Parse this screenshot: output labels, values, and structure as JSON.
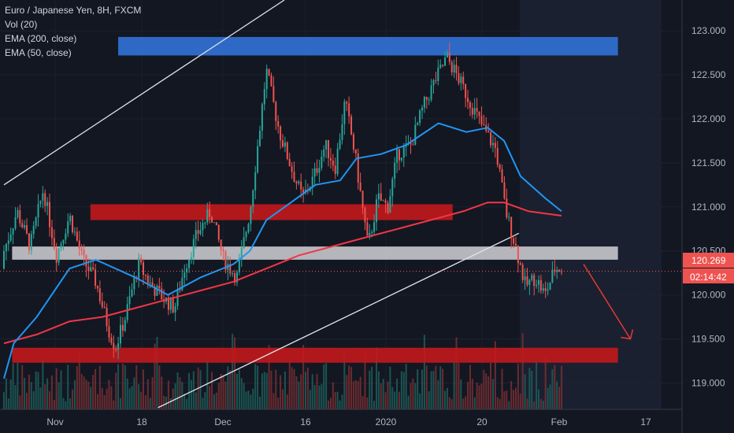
{
  "legend": {
    "symbol": "Euro / Japanese Yen, 8H, FXCM",
    "vol": "Vol (20)",
    "ema200": "EMA (200, close)",
    "ema50": "EMA (50, close)"
  },
  "price_axis": {
    "current_price": "120.269",
    "countdown": "02:14:42"
  },
  "colors": {
    "background": "#131722",
    "up_candle": "#26a69a",
    "down_candle": "#ef5350",
    "ema200": "#f23645",
    "ema50": "#2196f3",
    "zone_red": "#c2181c",
    "zone_gray": "#c8c8cc",
    "zone_blue": "#2f6ecf",
    "price_line": "#ef5350"
  },
  "chart_data": {
    "type": "candlestick",
    "y_range": [
      118.7,
      123.35
    ],
    "y_ticks": [
      119.0,
      119.5,
      120.0,
      120.5,
      121.0,
      121.5,
      122.0,
      122.5,
      123.0
    ],
    "y_tick_labels": [
      "119.000",
      "119.500",
      "120.000",
      "120.500",
      "121.000",
      "121.500",
      "122.000",
      "122.500",
      "123.000"
    ],
    "x_ticks": [
      "Nov",
      "18",
      "Dec",
      "16",
      "2020",
      "20",
      "Feb",
      "17"
    ],
    "candle_count": 245,
    "path": [
      [
        0,
        120.5
      ],
      [
        8,
        120.95
      ],
      [
        16,
        120.55
      ],
      [
        24,
        121.2
      ],
      [
        32,
        120.45
      ],
      [
        40,
        120.9
      ],
      [
        48,
        120.4
      ],
      [
        56,
        120.15
      ],
      [
        64,
        119.6
      ],
      [
        68,
        119.4
      ],
      [
        74,
        119.75
      ],
      [
        82,
        120.35
      ],
      [
        90,
        120.1
      ],
      [
        98,
        119.95
      ],
      [
        104,
        119.85
      ],
      [
        110,
        120.3
      ],
      [
        118,
        120.7
      ],
      [
        126,
        120.95
      ],
      [
        134,
        120.4
      ],
      [
        142,
        120.2
      ],
      [
        150,
        120.95
      ],
      [
        156,
        121.9
      ],
      [
        160,
        122.55
      ],
      [
        168,
        121.85
      ],
      [
        176,
        121.4
      ],
      [
        182,
        121.1
      ],
      [
        188,
        121.3
      ],
      [
        196,
        121.7
      ],
      [
        202,
        121.45
      ],
      [
        208,
        122.2
      ],
      [
        214,
        121.6
      ],
      [
        222,
        120.55
      ],
      [
        228,
        121.1
      ],
      [
        234,
        121.0
      ],
      [
        240,
        121.6
      ],
      [
        248,
        121.7
      ],
      [
        256,
        122.15
      ],
      [
        262,
        122.4
      ],
      [
        270,
        122.7
      ],
      [
        276,
        122.5
      ],
      [
        284,
        122.2
      ],
      [
        292,
        121.9
      ],
      [
        300,
        121.65
      ],
      [
        306,
        120.95
      ],
      [
        312,
        120.55
      ],
      [
        318,
        120.1
      ],
      [
        324,
        120.2
      ],
      [
        330,
        120.0
      ],
      [
        336,
        120.3
      ],
      [
        340,
        120.3
      ]
    ],
    "ema50": [
      [
        0,
        119.05
      ],
      [
        6,
        119.45
      ],
      [
        20,
        119.75
      ],
      [
        40,
        120.3
      ],
      [
        56,
        120.4
      ],
      [
        80,
        120.2
      ],
      [
        100,
        120.0
      ],
      [
        120,
        120.2
      ],
      [
        140,
        120.35
      ],
      [
        150,
        120.5
      ],
      [
        160,
        120.85
      ],
      [
        175,
        121.05
      ],
      [
        190,
        121.25
      ],
      [
        205,
        121.3
      ],
      [
        215,
        121.55
      ],
      [
        230,
        121.6
      ],
      [
        245,
        121.7
      ],
      [
        265,
        121.95
      ],
      [
        282,
        121.85
      ],
      [
        295,
        121.9
      ],
      [
        305,
        121.75
      ],
      [
        315,
        121.35
      ],
      [
        330,
        121.1
      ],
      [
        340,
        120.95
      ]
    ],
    "ema200": [
      [
        0,
        119.45
      ],
      [
        20,
        119.55
      ],
      [
        40,
        119.7
      ],
      [
        60,
        119.75
      ],
      [
        80,
        119.85
      ],
      [
        100,
        119.95
      ],
      [
        120,
        120.05
      ],
      [
        140,
        120.15
      ],
      [
        160,
        120.3
      ],
      [
        180,
        120.45
      ],
      [
        200,
        120.55
      ],
      [
        220,
        120.65
      ],
      [
        240,
        120.75
      ],
      [
        260,
        120.85
      ],
      [
        280,
        120.95
      ],
      [
        295,
        121.05
      ],
      [
        305,
        121.05
      ],
      [
        320,
        120.95
      ],
      [
        340,
        120.9
      ]
    ],
    "zones": [
      {
        "kind": "resistance",
        "color": "blue",
        "x": [
          70,
          390
        ],
        "y": [
          122.72,
          122.93
        ]
      },
      {
        "kind": "resistance",
        "color": "red",
        "x": [
          53,
          285
        ],
        "y": [
          120.85,
          121.03
        ]
      },
      {
        "kind": "pivot",
        "color": "gray",
        "x": [
          5,
          390
        ],
        "y": [
          120.4,
          120.55
        ]
      },
      {
        "kind": "support",
        "color": "red",
        "x": [
          5,
          390
        ],
        "y": [
          119.23,
          119.4
        ]
      }
    ],
    "trendlines": [
      {
        "from": [
          0,
          121.25
        ],
        "to": [
          171,
          123.35
        ]
      },
      {
        "from": [
          94,
          118.72
        ],
        "to": [
          314,
          120.7
        ]
      }
    ],
    "projection": {
      "from": [
        340,
        120.35
      ],
      "to": [
        370,
        119.5
      ]
    },
    "current_price": 120.269
  }
}
